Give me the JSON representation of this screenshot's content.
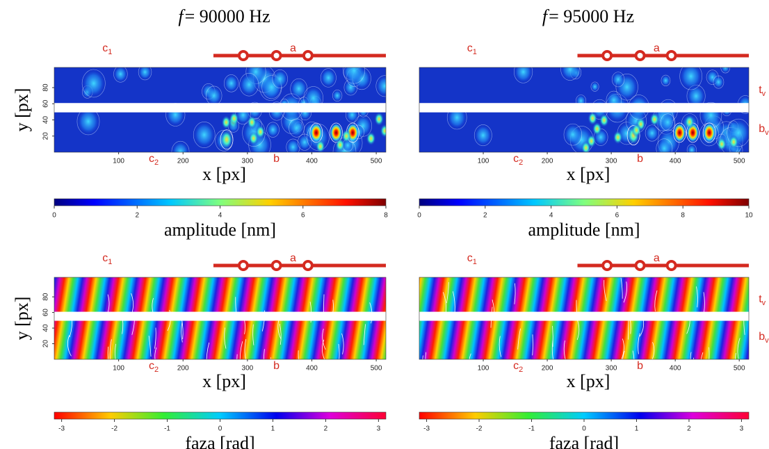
{
  "chart_data": [
    {
      "type": "heatmap",
      "title_var": "f",
      "title": "= 90000 Hz",
      "xlabel": "x [px]",
      "ylabel": "y [px]",
      "xlim": [
        0,
        515
      ],
      "xticks": [
        100,
        200,
        300,
        400,
        500
      ],
      "ylim": [
        0,
        105
      ],
      "yticks": [
        20,
        40,
        60,
        80
      ],
      "colorbar": {
        "label": "amplitude [nm]",
        "lim": [
          0,
          8
        ],
        "ticks": [
          0,
          2,
          4,
          6,
          8
        ],
        "colormap": "jet"
      },
      "annotations": [
        {
          "text": "c",
          "sub": "1"
        },
        {
          "text": "a"
        },
        {
          "text": "c",
          "sub": "2"
        },
        {
          "text": "b"
        }
      ]
    },
    {
      "type": "heatmap",
      "title_var": "f",
      "title": "= 95000 Hz",
      "xlabel": "x [px]",
      "xlim": [
        0,
        515
      ],
      "xticks": [
        100,
        200,
        300,
        400,
        500
      ],
      "ylim": [
        0,
        105
      ],
      "colorbar": {
        "label": "amplitude [nm]",
        "lim": [
          0,
          10
        ],
        "ticks": [
          0,
          2,
          4,
          6,
          8,
          10
        ],
        "colormap": "jet"
      },
      "annotations": [
        {
          "text": "c",
          "sub": "1"
        },
        {
          "text": "a"
        },
        {
          "text": "c",
          "sub": "2"
        },
        {
          "text": "b"
        },
        {
          "text": "t",
          "sub": "v"
        },
        {
          "text": "b",
          "sub": "v"
        }
      ]
    },
    {
      "type": "heatmap",
      "xlabel": "x [px]",
      "ylabel": "y [px]",
      "xlim": [
        0,
        515
      ],
      "xticks": [
        100,
        200,
        300,
        400,
        500
      ],
      "ylim": [
        0,
        105
      ],
      "yticks": [
        20,
        40,
        60,
        80
      ],
      "colorbar": {
        "label": "faza [rad]",
        "lim": [
          -3.14,
          3.14
        ],
        "ticks": [
          -3,
          -2,
          -1,
          0,
          1,
          2,
          3
        ],
        "colormap": "hsv"
      },
      "annotations": [
        {
          "text": "c",
          "sub": "1"
        },
        {
          "text": "a"
        },
        {
          "text": "c",
          "sub": "2"
        },
        {
          "text": "b"
        }
      ]
    },
    {
      "type": "heatmap",
      "xlabel": "x [px]",
      "xlim": [
        0,
        515
      ],
      "xticks": [
        100,
        200,
        300,
        400,
        500
      ],
      "ylim": [
        0,
        105
      ],
      "colorbar": {
        "label": "faza [rad]",
        "lim": [
          -3.14,
          3.14
        ],
        "ticks": [
          -3,
          -2,
          -1,
          0,
          1,
          2,
          3
        ],
        "colormap": "hsv"
      },
      "annotations": [
        {
          "text": "c",
          "sub": "1"
        },
        {
          "text": "a"
        },
        {
          "text": "c",
          "sub": "2"
        },
        {
          "text": "b"
        },
        {
          "text": "t",
          "sub": "v"
        },
        {
          "text": "b",
          "sub": "v"
        }
      ]
    }
  ]
}
